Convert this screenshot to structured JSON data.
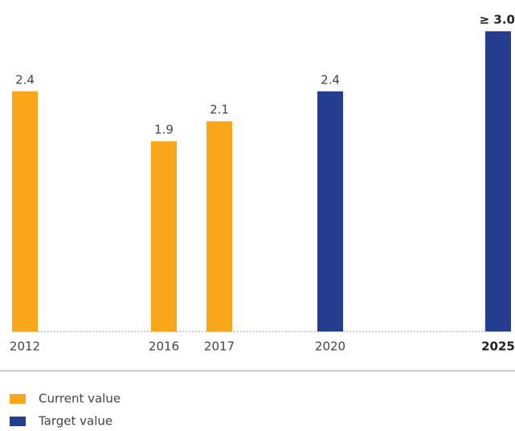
{
  "chart_data": {
    "type": "bar",
    "categories": [
      "2012",
      "2016",
      "2017",
      "2020",
      "2025"
    ],
    "series": [
      {
        "name": "Current value",
        "color": "#f9a61a",
        "values": [
          2.4,
          1.9,
          2.1,
          null,
          null
        ],
        "value_labels": [
          "2.4",
          "1.9",
          "2.1",
          null,
          null
        ]
      },
      {
        "name": "Target value",
        "color": "#253d8e",
        "values": [
          null,
          null,
          null,
          2.4,
          3.0
        ],
        "value_labels": [
          null,
          null,
          null,
          "2.4",
          "≥ 3.0"
        ]
      }
    ],
    "ylim": [
      0,
      3
    ]
  }
}
